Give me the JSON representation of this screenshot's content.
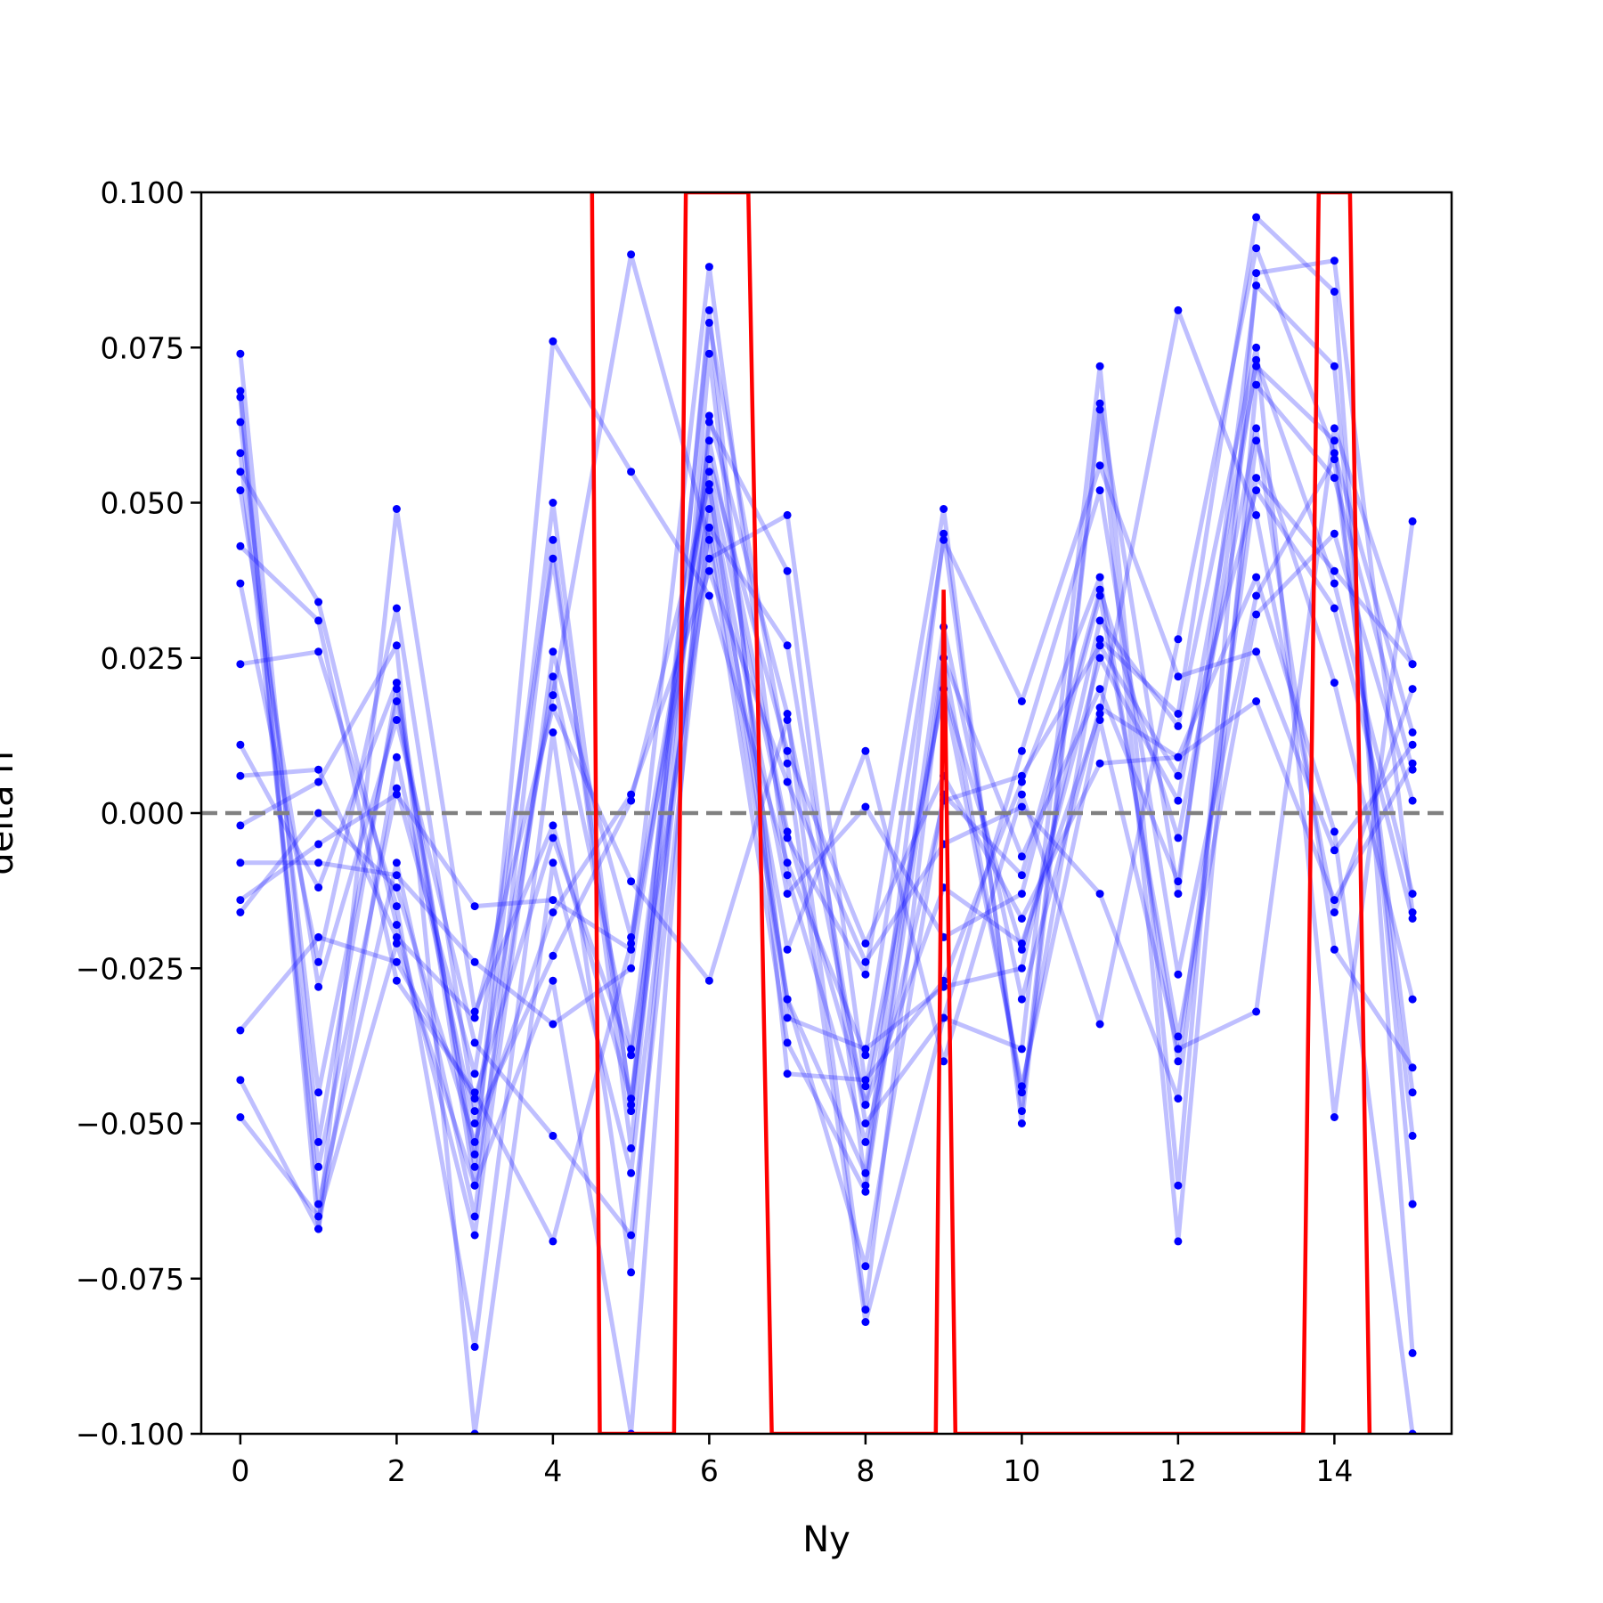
{
  "chart_data": {
    "type": "line",
    "xlabel": "Ny",
    "ylabel": "delta n",
    "xlim": [
      -0.5,
      15.5
    ],
    "ylim": [
      -0.1,
      0.1
    ],
    "x_ticks": [
      0,
      2,
      4,
      6,
      8,
      10,
      12,
      14
    ],
    "x_tick_labels": [
      "0",
      "2",
      "4",
      "6",
      "8",
      "10",
      "12",
      "14"
    ],
    "y_ticks": [
      -0.1,
      -0.075,
      -0.05,
      -0.025,
      0,
      0.025,
      0.05,
      0.075,
      0.1
    ],
    "y_tick_labels": [
      "−0.100",
      "−0.075",
      "−0.050",
      "−0.025",
      "0.000",
      "0.025",
      "0.050",
      "0.075",
      "0.100"
    ],
    "grid": false,
    "legend": "none",
    "reference_line": {
      "y": 0,
      "style": "dashed",
      "color": "#808080"
    },
    "x": [
      0,
      1,
      2,
      3,
      4,
      5,
      6,
      7,
      8,
      9,
      10,
      11,
      12,
      13,
      14,
      15
    ],
    "series": [
      {
        "values": [
          0.074,
          -0.053,
          0.02,
          -0.06,
          0.022,
          -0.038,
          0.06,
          -0.003,
          -0.047,
          0.02,
          -0.022,
          0.025,
          0.002,
          0.072,
          0.06,
          -0.052
        ]
      },
      {
        "values": [
          0.068,
          -0.067,
          0.009,
          -0.05,
          -0.023,
          0.002,
          0.053,
          -0.03,
          -0.058,
          0.045,
          -0.048,
          0.066,
          -0.013,
          0.085,
          0.072,
          -0.063
        ]
      },
      {
        "values": [
          0.067,
          -0.063,
          -0.008,
          -0.065,
          0.044,
          -0.054,
          0.081,
          -0.042,
          -0.043,
          -0.027,
          0.005,
          0.038,
          -0.04,
          0.054,
          0.039,
          0.024
        ]
      },
      {
        "values": [
          0.063,
          -0.045,
          0.018,
          -0.055,
          0.05,
          -0.048,
          0.064,
          0.016,
          -0.08,
          0.025,
          -0.045,
          0.028,
          0.016,
          0.096,
          0.084,
          -0.087
        ]
      },
      {
        "values": [
          0.058,
          -0.057,
          0.004,
          -0.042,
          0.041,
          -0.047,
          0.079,
          0.008,
          -0.082,
          -0.033,
          0.01,
          0.052,
          -0.026,
          0.035,
          0.057,
          -0.045
        ]
      },
      {
        "values": [
          0.055,
          0.034,
          -0.018,
          -0.068,
          0.026,
          -0.02,
          0.055,
          -0.004,
          -0.026,
          0.049,
          -0.05,
          0.065,
          -0.069,
          0.069,
          0.054,
          0.007
        ]
      },
      {
        "values": [
          0.052,
          -0.028,
          0.015,
          -0.037,
          -0.052,
          -0.068,
          0.046,
          0.027,
          -0.05,
          -0.033,
          -0.038,
          0.072,
          -0.06,
          0.087,
          0.089,
          -0.016
        ]
      },
      {
        "values": [
          0.043,
          0.031,
          -0.027,
          -0.045,
          -0.069,
          -0.021,
          0.049,
          -0.022,
          0.01,
          -0.04,
          0.003,
          -0.034,
          0.028,
          0.091,
          0.058,
          0.013
        ]
      },
      {
        "values": [
          0.037,
          -0.024,
          0.033,
          -0.048,
          0.019,
          0.09,
          0.044,
          -0.037,
          -0.061,
          0.025,
          -0.007,
          0.02,
          -0.011,
          0.073,
          0.037,
          -0.013
        ]
      },
      {
        "values": [
          0.024,
          0.026,
          -0.015,
          -0.086,
          0.013,
          -0.074,
          0.074,
          -0.033,
          -0.038,
          -0.028,
          -0.025,
          0.031,
          0.014,
          0.075,
          -0.049,
          0.047
        ]
      },
      {
        "values": [
          0.011,
          -0.012,
          0.021,
          -0.057,
          0.076,
          0.055,
          0.035,
          -0.008,
          -0.039,
          0.044,
          0.018,
          0.056,
          0.022,
          0.026,
          -0.006,
          0.011
        ]
      },
      {
        "values": [
          0.006,
          0.007,
          -0.02,
          -0.033,
          0.017,
          -0.011,
          -0.027,
          0.015,
          -0.047,
          -0.012,
          -0.021,
          0.016,
          0.081,
          0.048,
          -0.016,
          0.02
        ]
      },
      {
        "values": [
          -0.002,
          0.005,
          0.027,
          -0.1,
          -0.008,
          -0.058,
          0.052,
          -0.013,
          0.001,
          -0.02,
          -0.013,
          0.035,
          -0.036,
          0.032,
          0.045,
          0.002
        ]
      },
      {
        "values": [
          -0.008,
          -0.008,
          -0.01,
          -0.024,
          -0.034,
          -0.025,
          0.057,
          0.01,
          -0.021,
          0.006,
          -0.017,
          0.008,
          0.009,
          0.018,
          -0.014,
          0.008
        ]
      },
      {
        "values": [
          -0.014,
          -0.005,
          0.003,
          -0.015,
          -0.014,
          -0.022,
          0.088,
          -0.01,
          -0.053,
          0.002,
          0.006,
          0.027,
          0.006,
          0.052,
          0.033,
          -0.017
        ]
      },
      {
        "values": [
          -0.016,
          0.0,
          -0.012,
          -0.053,
          -0.016,
          0.003,
          0.039,
          0.005,
          -0.024,
          -0.005,
          0.001,
          -0.013,
          -0.046,
          0.06,
          0.021,
          -0.03
        ]
      },
      {
        "values": [
          -0.035,
          -0.02,
          -0.024,
          -0.046,
          -0.004,
          -0.039,
          0.041,
          0.048,
          -0.044,
          0.02,
          -0.044,
          0.015,
          -0.038,
          -0.032,
          0.062,
          0.024
        ]
      },
      {
        "values": [
          -0.043,
          -0.067,
          0.049,
          -0.032,
          -0.002,
          -0.046,
          0.046,
          -0.03,
          -0.073,
          0.003,
          -0.01,
          0.036,
          -0.004,
          0.062,
          -0.022,
          -0.041
        ]
      },
      {
        "values": [
          -0.049,
          -0.065,
          -0.021,
          -0.06,
          -0.027,
          -0.1,
          0.063,
          0.039,
          -0.06,
          0.03,
          -0.03,
          0.017,
          0.009,
          0.038,
          -0.003,
          -0.1
        ]
      }
    ],
    "highlight_series": {
      "color": "#ff0000",
      "x": [
        4.5,
        4.6,
        5.55,
        5.7,
        6.5,
        6.8,
        8.9,
        9.0,
        9.15,
        13.6,
        13.8,
        14.2,
        14.45
      ],
      "values": [
        0.1,
        -0.1,
        -0.1,
        0.1,
        0.1,
        -0.1,
        -0.1,
        0.036,
        -0.1,
        -0.1,
        0.1,
        0.1,
        -0.1
      ]
    }
  }
}
